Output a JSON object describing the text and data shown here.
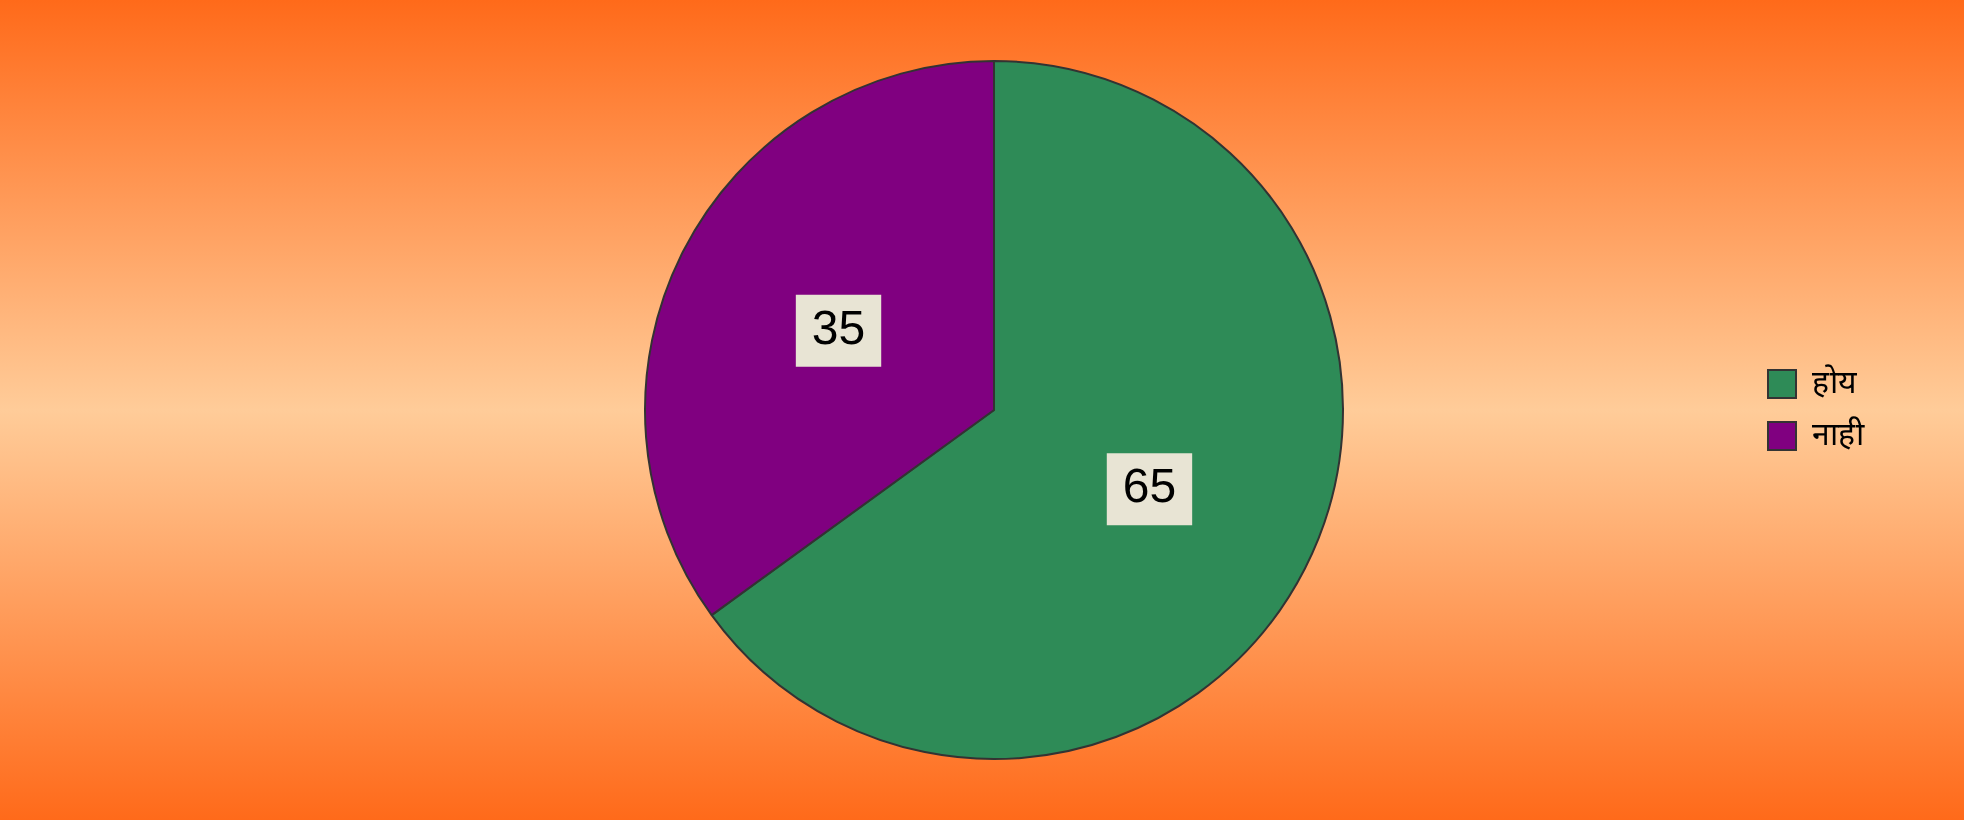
{
  "chart_data": {
    "type": "pie",
    "categories": [
      "होय",
      "नाही"
    ],
    "values": [
      65,
      35
    ],
    "colors": [
      "#2e8b57",
      "#800080"
    ],
    "data_labels": true,
    "legend": "right"
  }
}
